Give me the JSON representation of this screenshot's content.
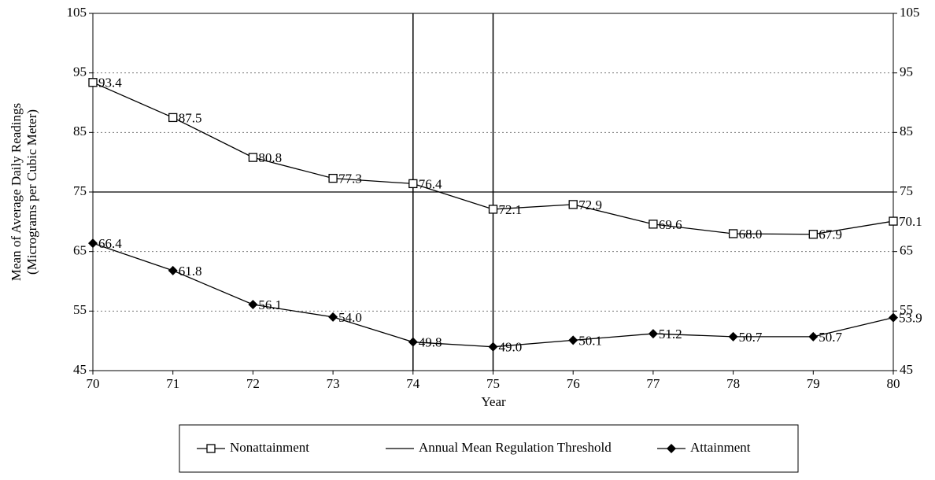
{
  "chart_data": {
    "type": "line",
    "x_label": "Year",
    "y_label": [
      "Mean of Average Daily Readings",
      "(Micrograms per Cubic Meter)"
    ],
    "x": [
      70,
      71,
      72,
      73,
      74,
      75,
      76,
      77,
      78,
      79,
      80
    ],
    "xlim": [
      70,
      80
    ],
    "xticks": [
      70,
      71,
      72,
      73,
      74,
      75,
      76,
      77,
      78,
      79,
      80
    ],
    "ylim": [
      45,
      105
    ],
    "yticks": [
      45,
      55,
      65,
      75,
      85,
      95,
      105
    ],
    "y2lim": [
      45,
      105
    ],
    "y2ticks": [
      45,
      55,
      65,
      75,
      85,
      95,
      105
    ],
    "grid": true,
    "vlines": [
      74,
      75
    ],
    "series": [
      {
        "name": "Nonattainment",
        "color": "#000000",
        "marker": "square",
        "values": [
          93.4,
          87.5,
          80.8,
          77.3,
          76.4,
          72.1,
          72.9,
          69.6,
          68.0,
          67.9,
          70.1
        ],
        "value_labels": [
          "93.4",
          "87.5",
          "80.8",
          "77.3",
          "76.4",
          "72.1",
          "72.9",
          "69.6",
          "68.0",
          "67.9",
          "70.1"
        ]
      },
      {
        "name": "Annual Mean Regulation Threshold",
        "color": "#000000",
        "marker": "none",
        "values": [
          75,
          75,
          75,
          75,
          75,
          75,
          75,
          75,
          75,
          75,
          75
        ]
      },
      {
        "name": "Attainment",
        "color": "#000000",
        "marker": "diamond",
        "values": [
          66.4,
          61.8,
          56.1,
          54.0,
          49.8,
          49.0,
          50.1,
          51.2,
          50.7,
          50.7,
          53.9
        ],
        "value_labels": [
          "66.4",
          "61.8",
          "56.1",
          "54.0",
          "49.8",
          "49.0",
          "50.1",
          "51.2",
          "50.7",
          "50.7",
          "53.9"
        ]
      }
    ]
  }
}
